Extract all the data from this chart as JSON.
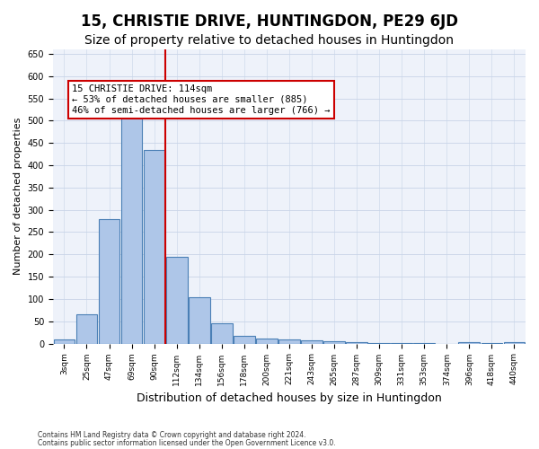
{
  "title": "15, CHRISTIE DRIVE, HUNTINGDON, PE29 6JD",
  "subtitle": "Size of property relative to detached houses in Huntingdon",
  "xlabel": "Distribution of detached houses by size in Huntingdon",
  "ylabel": "Number of detached properties",
  "categories": [
    "3sqm",
    "25sqm",
    "47sqm",
    "69sqm",
    "90sqm",
    "112sqm",
    "134sqm",
    "156sqm",
    "178sqm",
    "200sqm",
    "221sqm",
    "243sqm",
    "265sqm",
    "287sqm",
    "309sqm",
    "331sqm",
    "353sqm",
    "374sqm",
    "396sqm",
    "418sqm",
    "440sqm"
  ],
  "values": [
    10,
    65,
    280,
    515,
    435,
    195,
    103,
    46,
    17,
    12,
    9,
    7,
    5,
    4,
    2,
    1,
    1,
    0,
    4,
    1,
    3
  ],
  "bar_color": "#aec6e8",
  "bar_edge_color": "#4a7fb5",
  "vline_color": "#cc0000",
  "vline_x": 4.5,
  "annotation_text": "15 CHRISTIE DRIVE: 114sqm\n← 53% of detached houses are smaller (885)\n46% of semi-detached houses are larger (766) →",
  "annotation_box_color": "#ffffff",
  "annotation_box_edge": "#cc0000",
  "ylim": [
    0,
    660
  ],
  "yticks": [
    0,
    50,
    100,
    150,
    200,
    250,
    300,
    350,
    400,
    450,
    500,
    550,
    600,
    650
  ],
  "grid_color": "#c8d4e8",
  "background_color": "#eef2fa",
  "footer_line1": "Contains HM Land Registry data © Crown copyright and database right 2024.",
  "footer_line2": "Contains public sector information licensed under the Open Government Licence v3.0.",
  "title_fontsize": 12,
  "subtitle_fontsize": 10,
  "xlabel_fontsize": 9,
  "ylabel_fontsize": 8
}
